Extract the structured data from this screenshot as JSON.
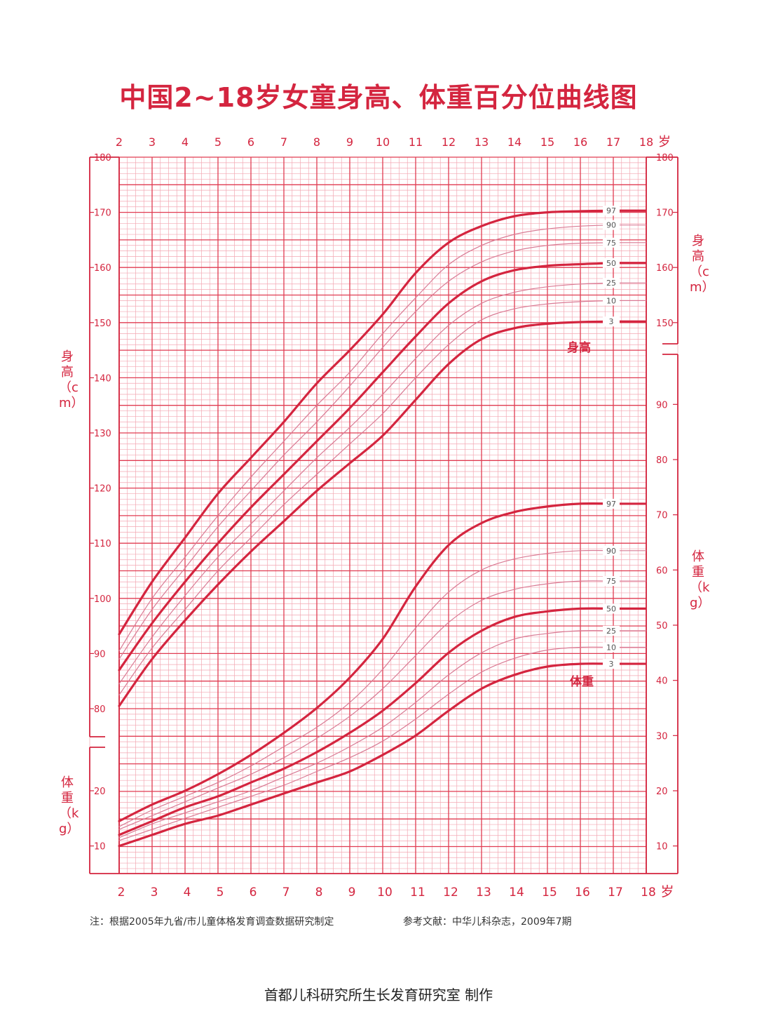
{
  "title": "中国2~18岁女童身高、体重百分位曲线图",
  "note": "注：根据2005年九省/市儿童体格发育调查数据研究制定",
  "reference": "参考文献：中华儿科杂志，2009年7期",
  "maker": "首都儿科研究所生长发育研究室  制作",
  "colors": {
    "accent": "#d4253f",
    "grid_major": "#e03c52",
    "grid_minor": "#f3a8b3",
    "thin_curve": "#d97a94"
  },
  "chart_data": {
    "type": "line",
    "x_unit": "岁",
    "xlim": [
      2,
      18
    ],
    "x_ticks": [
      2,
      3,
      4,
      5,
      6,
      7,
      8,
      9,
      10,
      11,
      12,
      13,
      14,
      15,
      16,
      17,
      18
    ],
    "grid": true,
    "height": {
      "ylabel": "身高（cm）",
      "ylim": [
        80,
        180
      ],
      "y_ticks": [
        80,
        90,
        100,
        110,
        120,
        130,
        140,
        150,
        160,
        170,
        180
      ],
      "right_ticks": [
        150,
        160,
        170,
        180
      ],
      "curve_label": "身高",
      "x": [
        2,
        3,
        4,
        5,
        6,
        7,
        8,
        9,
        10,
        11,
        12,
        13,
        14,
        15,
        16,
        17
      ],
      "series": [
        {
          "name": "97",
          "values": [
            93.5,
            103,
            111,
            119,
            125.5,
            132,
            139,
            145,
            151.5,
            159,
            164.5,
            167.5,
            169.3,
            170,
            170.2,
            170.3
          ]
        },
        {
          "name": "90",
          "values": [
            90.5,
            100,
            107.5,
            115,
            122,
            128.5,
            135,
            141,
            148,
            154.5,
            160.5,
            164,
            166,
            167,
            167.5,
            167.7
          ]
        },
        {
          "name": "75",
          "values": [
            89,
            98,
            105.5,
            113,
            119.5,
            126,
            132,
            138.5,
            145.5,
            152,
            157.5,
            161,
            163,
            164,
            164.4,
            164.5
          ]
        },
        {
          "name": "50",
          "values": [
            87,
            95.5,
            103,
            110,
            116.5,
            122.5,
            128.5,
            134.5,
            141,
            147.5,
            153.5,
            157.5,
            159.5,
            160.3,
            160.6,
            160.8
          ]
        },
        {
          "name": "25",
          "values": [
            84.5,
            93,
            100.5,
            107.5,
            113.5,
            119.5,
            125.5,
            131,
            137,
            143.5,
            149.5,
            153.5,
            155.5,
            156.5,
            157,
            157.2
          ]
        },
        {
          "name": "10",
          "values": [
            82.5,
            91,
            98,
            105,
            111,
            117,
            122.5,
            128,
            133.5,
            140,
            146,
            150.5,
            152.5,
            153.4,
            153.8,
            154
          ]
        },
        {
          "name": "3",
          "values": [
            80.5,
            89,
            96,
            102.5,
            108.5,
            114,
            119.5,
            124.5,
            129.5,
            136,
            142.5,
            147,
            149,
            149.8,
            150.1,
            150.2
          ]
        }
      ]
    },
    "weight": {
      "ylabel": "体重（kg）",
      "ylim": [
        5,
        95
      ],
      "y_ticks": [
        10,
        20
      ],
      "right_ticks": [
        10,
        20,
        30,
        40,
        50,
        60,
        70,
        80,
        90
      ],
      "curve_label": "体重",
      "x": [
        2,
        3,
        4,
        5,
        6,
        7,
        8,
        9,
        10,
        11,
        12,
        13,
        14,
        15,
        16,
        17
      ],
      "series": [
        {
          "name": "97",
          "values": [
            14.5,
            17.5,
            20,
            23,
            26.5,
            30.5,
            35,
            40.5,
            47.5,
            57,
            64.5,
            68.5,
            70.5,
            71.5,
            72,
            72
          ]
        },
        {
          "name": "90",
          "values": [
            13.5,
            16.5,
            19,
            21.5,
            24.5,
            28,
            31.5,
            36,
            42,
            49.5,
            56,
            60,
            62,
            63,
            63.5,
            63.5
          ]
        },
        {
          "name": "75",
          "values": [
            13,
            15.5,
            18,
            20.5,
            23,
            26,
            29.5,
            33.5,
            38.5,
            44.5,
            50.5,
            54.5,
            56.5,
            57.5,
            58,
            58
          ]
        },
        {
          "name": "50",
          "values": [
            12,
            14.5,
            17,
            19,
            21.5,
            24,
            27,
            30.5,
            34.5,
            39.5,
            45,
            49,
            51.5,
            52.5,
            53,
            53
          ]
        },
        {
          "name": "25",
          "values": [
            11.5,
            14,
            16,
            18,
            20,
            22.5,
            25,
            28,
            31.5,
            36,
            41,
            45,
            47.5,
            48.5,
            49,
            49
          ]
        },
        {
          "name": "10",
          "values": [
            11,
            13,
            15,
            17,
            19,
            21,
            23.5,
            26,
            29,
            33,
            37.5,
            41.5,
            44,
            45.5,
            46,
            46
          ]
        },
        {
          "name": "3",
          "values": [
            10,
            12,
            14,
            15.5,
            17.5,
            19.5,
            21.5,
            23.5,
            26.5,
            30,
            34.5,
            38.5,
            41,
            42.5,
            43,
            43
          ]
        }
      ]
    }
  }
}
